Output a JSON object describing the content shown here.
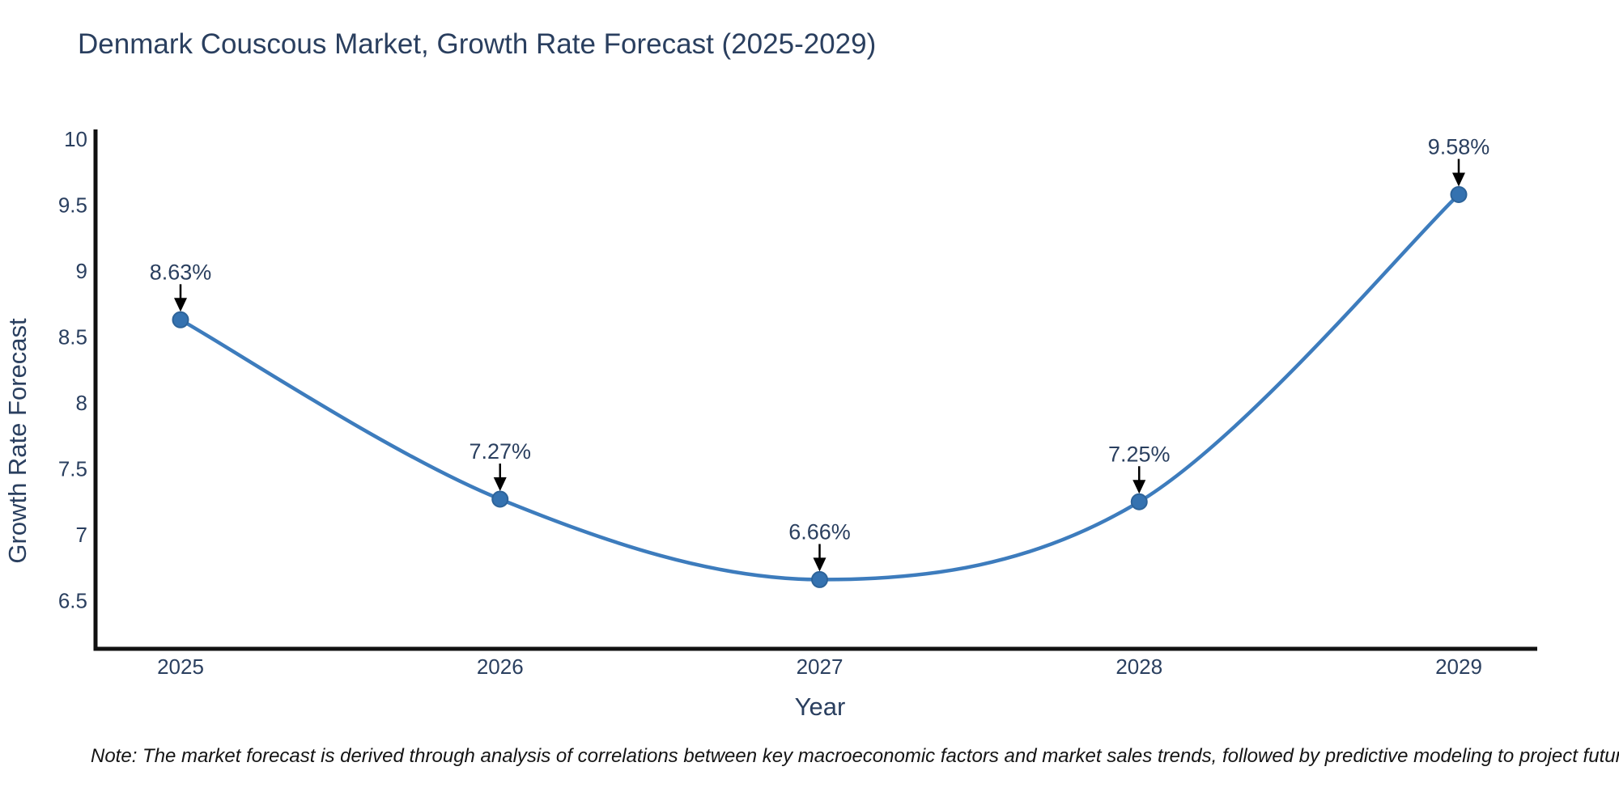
{
  "page": {
    "background": "#ffffff"
  },
  "note": "Note: The market forecast is derived through analysis of correlations between key macroeconomic factors and market sales trends, followed by predictive modeling to project future sales",
  "chart_data": {
    "type": "line",
    "title": "Denmark Couscous Market, Growth Rate Forecast (2025-2029)",
    "xlabel": "Year",
    "ylabel": "Growth Rate Forecast",
    "categories": [
      "2025",
      "2026",
      "2027",
      "2028",
      "2029"
    ],
    "series": [
      {
        "name": "Growth Rate Forecast",
        "values": [
          8.63,
          7.27,
          6.66,
          7.25,
          9.58
        ]
      }
    ],
    "point_labels": [
      "8.63%",
      "7.27%",
      "6.66%",
      "7.25%",
      "9.58%"
    ],
    "yticks": [
      10,
      9.5,
      9,
      8.5,
      8,
      7.5,
      7,
      6.5
    ],
    "ylim": [
      6.13,
      10.07
    ],
    "grid": false,
    "legend": "none",
    "line_shape": "spline",
    "annotations_style": "label-with-down-arrow",
    "colors": {
      "line": "#3d7cbd",
      "marker_fill": "#3572b0",
      "marker_edge": "#2d6399",
      "axis": "#111111",
      "text": "#2a3f5f",
      "arrow": "#000000",
      "note_text": "#141414",
      "background": "#ffffff"
    }
  }
}
